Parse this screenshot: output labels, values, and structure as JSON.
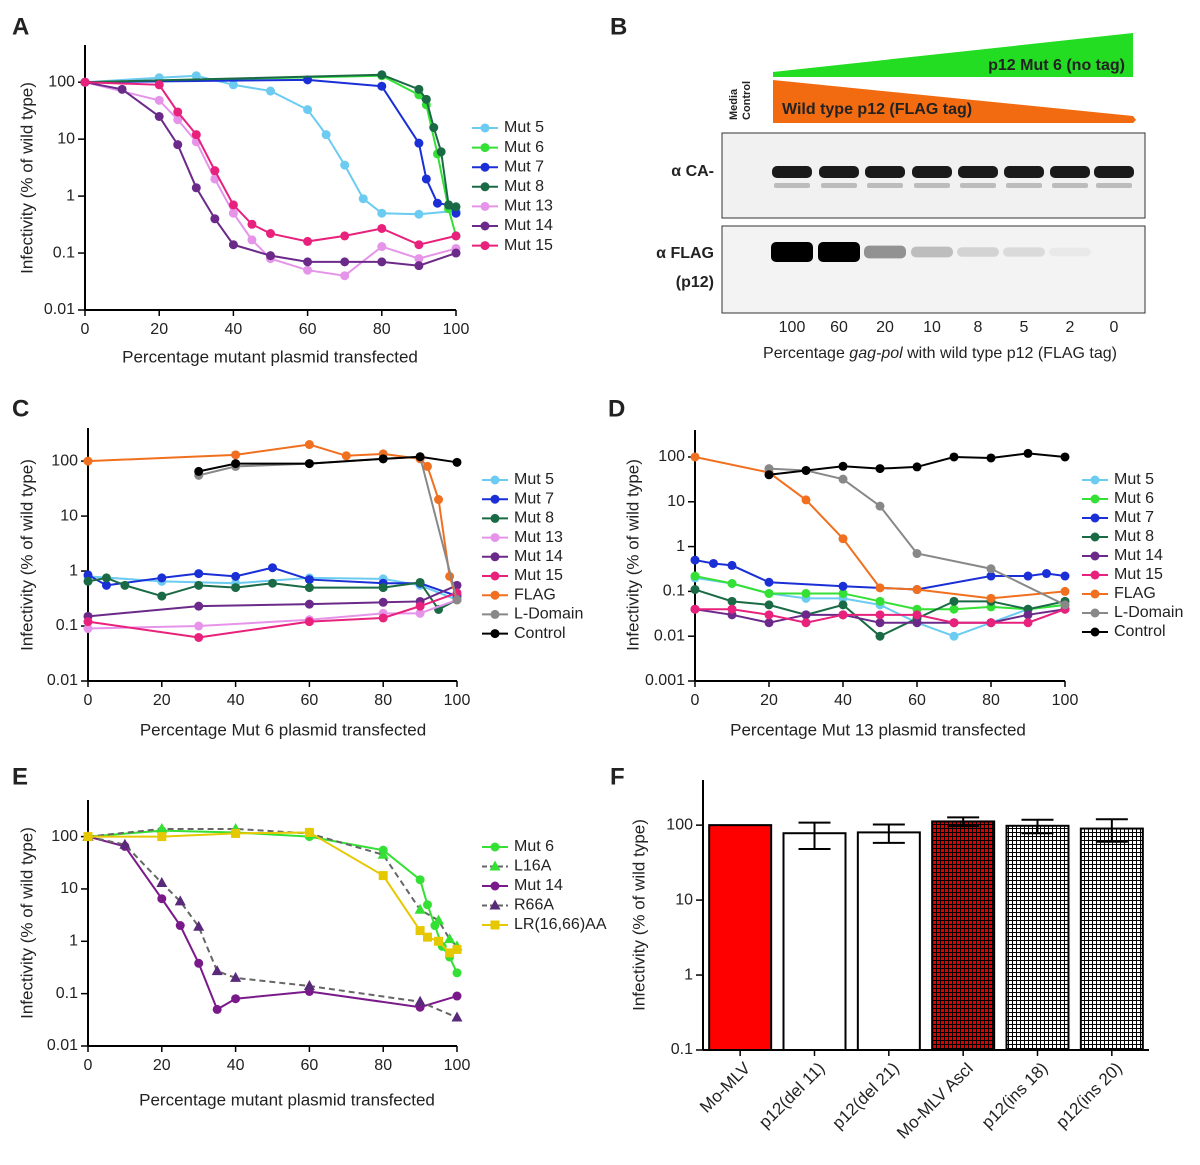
{
  "chart_data": [
    {
      "type": "line",
      "panel_label": "A",
      "y_label": "Infectivity (% of wild type)",
      "x_label": "Percentage mutant plasmid transfected",
      "log_y": true,
      "xlim": [
        0,
        100
      ],
      "xticks": [
        0,
        20,
        40,
        60,
        80,
        100
      ],
      "ylim": [
        0.01,
        450
      ],
      "yticks": [
        0.01,
        0.1,
        1,
        10,
        100
      ],
      "series": [
        {
          "name": "Mut 5",
          "color": "#6ccbf0",
          "x": [
            0,
            20,
            30,
            40,
            50,
            60,
            65,
            70,
            75,
            80,
            90,
            100
          ],
          "values": [
            100,
            120,
            130,
            90,
            70,
            33,
            12,
            3.5,
            0.9,
            0.5,
            0.48,
            0.55
          ]
        },
        {
          "name": "Mut 6",
          "color": "#33e033",
          "x": [
            0,
            80,
            90,
            92,
            95,
            98,
            100
          ],
          "values": [
            100,
            130,
            60,
            40,
            5.5,
            0.6,
            0.2
          ]
        },
        {
          "name": "Mut 7",
          "color": "#1a2fd6",
          "x": [
            0,
            60,
            80,
            90,
            92,
            95,
            98,
            100
          ],
          "values": [
            100,
            110,
            85,
            8.5,
            2,
            0.75,
            0.7,
            0.5
          ]
        },
        {
          "name": "Mut 8",
          "color": "#1a6b45",
          "x": [
            0,
            80,
            90,
            92,
            94,
            96,
            98,
            100
          ],
          "values": [
            100,
            135,
            75,
            50,
            16,
            6,
            0.7,
            0.65
          ]
        },
        {
          "name": "Mut 13",
          "color": "#e694ea",
          "x": [
            0,
            20,
            25,
            30,
            35,
            40,
            45,
            50,
            60,
            70,
            80,
            90,
            100
          ],
          "values": [
            100,
            48,
            22,
            9,
            2,
            0.5,
            0.17,
            0.08,
            0.05,
            0.04,
            0.13,
            0.08,
            0.12
          ]
        },
        {
          "name": "Mut 14",
          "color": "#6b2a8a",
          "x": [
            0,
            10,
            20,
            25,
            30,
            35,
            40,
            50,
            60,
            70,
            80,
            90,
            100
          ],
          "values": [
            100,
            75,
            25,
            8,
            1.4,
            0.4,
            0.14,
            0.09,
            0.07,
            0.07,
            0.07,
            0.06,
            0.1
          ]
        },
        {
          "name": "Mut 15",
          "color": "#e8217c",
          "x": [
            0,
            20,
            25,
            30,
            35,
            40,
            45,
            50,
            60,
            70,
            80,
            90,
            100
          ],
          "values": [
            100,
            90,
            30,
            12,
            2.8,
            0.7,
            0.32,
            0.22,
            0.16,
            0.2,
            0.27,
            0.14,
            0.2
          ]
        }
      ]
    },
    {
      "type": "line",
      "panel_label": "C",
      "y_label": "Infectivity (% of wild type)",
      "x_label": "Percentage Mut 6 plasmid transfected",
      "log_y": true,
      "xlim": [
        0,
        100
      ],
      "xticks": [
        0,
        20,
        40,
        60,
        80,
        100
      ],
      "ylim": [
        0.01,
        400
      ],
      "yticks": [
        0.01,
        0.1,
        1,
        10,
        100
      ],
      "series": [
        {
          "name": "Mut 5",
          "color": "#6ccbf0",
          "x": [
            0,
            20,
            40,
            60,
            80,
            90,
            100
          ],
          "values": [
            0.8,
            0.65,
            0.6,
            0.75,
            0.72,
            0.55,
            0.3
          ]
        },
        {
          "name": "Mut 7",
          "color": "#1a2fd6",
          "x": [
            0,
            5,
            20,
            30,
            40,
            50,
            60,
            80,
            90,
            100
          ],
          "values": [
            0.85,
            0.55,
            0.75,
            0.9,
            0.8,
            1.15,
            0.7,
            0.6,
            0.6,
            0.35
          ]
        },
        {
          "name": "Mut 8",
          "color": "#1a6b45",
          "x": [
            0,
            5,
            10,
            20,
            30,
            40,
            50,
            60,
            80,
            90,
            95,
            100
          ],
          "values": [
            0.65,
            0.75,
            0.55,
            0.35,
            0.55,
            0.5,
            0.6,
            0.5,
            0.5,
            0.62,
            0.2,
            0.3
          ]
        },
        {
          "name": "Mut 13",
          "color": "#e694ea",
          "x": [
            0,
            30,
            60,
            80,
            90,
            100
          ],
          "values": [
            0.09,
            0.1,
            0.13,
            0.17,
            0.17,
            0.3
          ]
        },
        {
          "name": "Mut 14",
          "color": "#6b2a8a",
          "x": [
            0,
            30,
            60,
            80,
            90,
            100
          ],
          "values": [
            0.15,
            0.23,
            0.25,
            0.27,
            0.28,
            0.55
          ]
        },
        {
          "name": "Mut 15",
          "color": "#e8217c",
          "x": [
            0,
            30,
            60,
            80,
            90,
            100
          ],
          "values": [
            0.12,
            0.062,
            0.12,
            0.14,
            0.23,
            0.4
          ]
        },
        {
          "name": "FLAG",
          "color": "#f07020",
          "x": [
            0,
            40,
            60,
            70,
            80,
            90,
            92,
            95,
            98,
            100
          ],
          "values": [
            100,
            130,
            200,
            125,
            135,
            110,
            80,
            20,
            0.8,
            0.3
          ]
        },
        {
          "name": "L-Domain",
          "color": "#888888",
          "x": [
            30,
            40,
            60,
            80,
            90,
            100
          ],
          "values": [
            55,
            80,
            90,
            110,
            120,
            0.3
          ]
        },
        {
          "name": "Control",
          "color": "#000000",
          "x": [
            30,
            40,
            60,
            80,
            90,
            100
          ],
          "values": [
            65,
            90,
            90,
            110,
            120,
            95
          ]
        }
      ]
    },
    {
      "type": "line",
      "panel_label": "D",
      "y_label": "Infectivity (% of wild type)",
      "x_label": "Percentage Mut 13 plasmid transfected",
      "log_y": true,
      "xlim": [
        0,
        100
      ],
      "xticks": [
        0,
        20,
        40,
        60,
        80,
        100
      ],
      "ylim": [
        0.001,
        400
      ],
      "yticks": [
        0.001,
        0.01,
        0.1,
        1,
        10,
        100
      ],
      "series": [
        {
          "name": "Mut 5",
          "color": "#6ccbf0",
          "x": [
            0,
            10,
            20,
            30,
            40,
            50,
            60,
            70,
            80,
            90,
            100
          ],
          "values": [
            0.2,
            0.15,
            0.09,
            0.07,
            0.07,
            0.05,
            0.02,
            0.01,
            0.02,
            0.04,
            0.05
          ]
        },
        {
          "name": "Mut 6",
          "color": "#33e033",
          "x": [
            0,
            10,
            20,
            30,
            40,
            50,
            60,
            70,
            80,
            90,
            100
          ],
          "values": [
            0.22,
            0.15,
            0.09,
            0.09,
            0.09,
            0.06,
            0.04,
            0.04,
            0.045,
            0.04,
            0.05
          ]
        },
        {
          "name": "Mut 7",
          "color": "#1a2fd6",
          "x": [
            0,
            5,
            10,
            20,
            40,
            60,
            80,
            90,
            95,
            100
          ],
          "values": [
            0.5,
            0.42,
            0.38,
            0.16,
            0.13,
            0.11,
            0.22,
            0.22,
            0.25,
            0.22
          ]
        },
        {
          "name": "Mut 8",
          "color": "#1a6b45",
          "x": [
            0,
            10,
            20,
            30,
            40,
            50,
            60,
            70,
            80,
            90,
            100
          ],
          "values": [
            0.11,
            0.06,
            0.05,
            0.03,
            0.05,
            0.01,
            0.025,
            0.06,
            0.06,
            0.04,
            0.06
          ]
        },
        {
          "name": "Mut 14",
          "color": "#6b2a8a",
          "x": [
            0,
            10,
            20,
            30,
            40,
            50,
            60,
            70,
            80,
            90,
            100
          ],
          "values": [
            0.04,
            0.03,
            0.02,
            0.03,
            0.03,
            0.02,
            0.02,
            0.02,
            0.02,
            0.03,
            0.04
          ]
        },
        {
          "name": "Mut 15",
          "color": "#e8217c",
          "x": [
            0,
            10,
            20,
            30,
            40,
            50,
            60,
            70,
            80,
            90,
            100
          ],
          "values": [
            0.04,
            0.04,
            0.03,
            0.02,
            0.03,
            0.03,
            0.03,
            0.02,
            0.02,
            0.02,
            0.04
          ]
        },
        {
          "name": "FLAG",
          "color": "#f07020",
          "x": [
            0,
            20,
            30,
            40,
            50,
            60,
            80,
            100
          ],
          "values": [
            100,
            45,
            11,
            1.5,
            0.12,
            0.11,
            0.07,
            0.1
          ]
        },
        {
          "name": "L-Domain",
          "color": "#888888",
          "x": [
            20,
            30,
            40,
            50,
            60,
            80,
            100
          ],
          "values": [
            55,
            50,
            32,
            8,
            0.7,
            0.32,
            0.05
          ]
        },
        {
          "name": "Control",
          "color": "#000000",
          "x": [
            20,
            30,
            40,
            50,
            60,
            70,
            80,
            90,
            100
          ],
          "values": [
            40,
            50,
            62,
            55,
            60,
            100,
            95,
            120,
            100
          ]
        }
      ]
    },
    {
      "type": "line",
      "panel_label": "E",
      "y_label": "Infectivity (% of wild type)",
      "x_label": "Percentage mutant plasmid transfected",
      "log_y": true,
      "xlim": [
        0,
        100
      ],
      "xticks": [
        0,
        20,
        40,
        60,
        80,
        100
      ],
      "ylim": [
        0.01,
        500
      ],
      "yticks": [
        0.01,
        0.1,
        1,
        10,
        100
      ],
      "series": [
        {
          "name": "Mut 6",
          "color": "#33e033",
          "marker": "circle",
          "x": [
            0,
            20,
            40,
            60,
            80,
            90,
            92,
            94,
            96,
            98,
            100
          ],
          "values": [
            100,
            130,
            120,
            100,
            55,
            15,
            5,
            2,
            0.8,
            0.5,
            0.25
          ]
        },
        {
          "name": "L16A",
          "color": "#33e033",
          "marker": "triangle",
          "line_color": "#666666",
          "dash": true,
          "x": [
            0,
            20,
            40,
            60,
            80,
            90,
            95,
            98,
            100
          ],
          "values": [
            100,
            140,
            140,
            115,
            45,
            4,
            2.5,
            1.1,
            0.8
          ]
        },
        {
          "name": "Mut 14",
          "color": "#7a1a8a",
          "marker": "circle",
          "x": [
            0,
            10,
            20,
            25,
            30,
            35,
            40,
            60,
            90,
            100
          ],
          "values": [
            100,
            65,
            6.5,
            2,
            0.38,
            0.05,
            0.08,
            0.11,
            0.055,
            0.09
          ]
        },
        {
          "name": "R66A",
          "color": "#5a2a7a",
          "marker": "triangle",
          "line_color": "#666666",
          "dash": true,
          "x": [
            0,
            10,
            20,
            25,
            30,
            35,
            40,
            60,
            90,
            100
          ],
          "values": [
            100,
            70,
            13,
            5.8,
            1.9,
            0.27,
            0.2,
            0.14,
            0.07,
            0.035
          ]
        },
        {
          "name": "LR(16,66)AA",
          "color": "#e6c800",
          "marker": "square",
          "x": [
            0,
            20,
            40,
            60,
            80,
            90,
            92,
            95,
            98,
            100
          ],
          "values": [
            100,
            100,
            115,
            120,
            18,
            1.6,
            1.2,
            1,
            0.6,
            0.7
          ]
        }
      ]
    },
    {
      "type": "bar",
      "panel_label": "F",
      "y_label": "Infectivity (% of wild type)",
      "log_y": true,
      "ylim": [
        0.1,
        400
      ],
      "yticks": [
        0.1,
        1,
        10,
        100
      ],
      "categories": [
        "Mo-MLV",
        "p12(del 11)",
        "p12(del 21)",
        "Mo-MLV AscI",
        "p12(ins 18)",
        "p12(ins 20)"
      ],
      "values": [
        100,
        78,
        80,
        112,
        98,
        90
      ],
      "errors": [
        0,
        30,
        22,
        15,
        20,
        30
      ],
      "colors": [
        "#ff0000",
        "#ffffff",
        "#ffffff",
        "#e00000",
        "#ffffff",
        "#ffffff"
      ],
      "hatch": [
        false,
        false,
        false,
        true,
        true,
        true
      ]
    }
  ],
  "blot": {
    "panel_label": "B",
    "green_label": "p12 Mut 6 (no tag)",
    "orange_label": "Wild type p12 (FLAG tag)",
    "media_control": [
      "Media",
      "Control"
    ],
    "ca_label": "α CA-",
    "flag_label": [
      "α FLAG",
      "(p12)"
    ],
    "lanes": [
      100,
      60,
      20,
      10,
      8,
      5,
      2,
      0
    ],
    "x_label": [
      "Percentage ",
      "gag-pol",
      " with wild type p12 (FLAG tag)"
    ]
  }
}
